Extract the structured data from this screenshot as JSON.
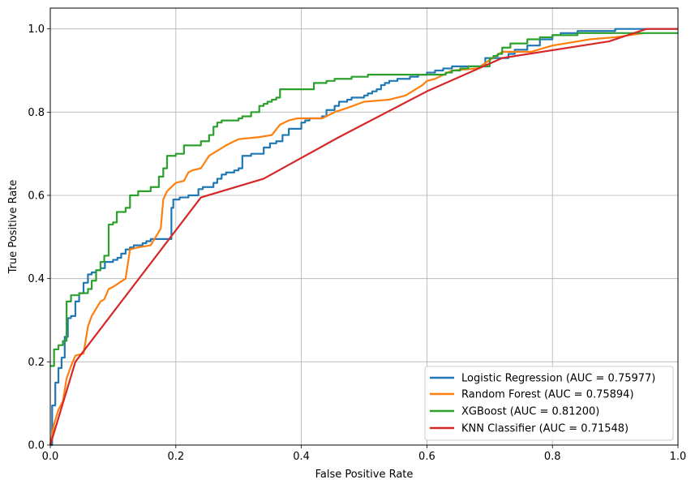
{
  "chart_data": {
    "type": "line",
    "title": "",
    "xlabel": "False Positive Rate",
    "ylabel": "True Positive Rate",
    "xlim": [
      0.0,
      1.0
    ],
    "ylim": [
      0.0,
      1.05
    ],
    "xticks": [
      "0.0",
      "0.2",
      "0.4",
      "0.6",
      "0.8",
      "1.0"
    ],
    "yticks": [
      "0.0",
      "0.2",
      "0.4",
      "0.6",
      "0.8",
      "1.0"
    ],
    "grid": true,
    "legend_position": "bottom-right",
    "series": [
      {
        "name": "Logistic Regression (AUC = 0.75977)",
        "color": "#1f77b4",
        "step": true,
        "x": [
          0,
          0.003,
          0.008,
          0.013,
          0.018,
          0.023,
          0.028,
          0.033,
          0.04,
          0.046,
          0.053,
          0.06,
          0.066,
          0.073,
          0.08,
          0.087,
          0.1,
          0.107,
          0.113,
          0.12,
          0.127,
          0.133,
          0.14,
          0.147,
          0.153,
          0.16,
          0.18,
          0.193,
          0.196,
          0.2,
          0.206,
          0.22,
          0.236,
          0.243,
          0.26,
          0.266,
          0.273,
          0.28,
          0.293,
          0.3,
          0.306,
          0.313,
          0.32,
          0.34,
          0.35,
          0.36,
          0.37,
          0.38,
          0.393,
          0.4,
          0.406,
          0.413,
          0.42,
          0.433,
          0.44,
          0.453,
          0.46,
          0.473,
          0.48,
          0.5,
          0.506,
          0.513,
          0.52,
          0.527,
          0.533,
          0.54,
          0.553,
          0.56,
          0.573,
          0.586,
          0.6,
          0.613,
          0.626,
          0.64,
          0.653,
          0.666,
          0.693,
          0.73,
          0.74,
          0.76,
          0.78,
          0.8,
          0.813,
          0.826,
          0.84,
          0.86,
          0.88,
          0.9,
          0.93,
          0.95,
          1.0
        ],
        "y": [
          0,
          0.095,
          0.15,
          0.185,
          0.21,
          0.26,
          0.305,
          0.31,
          0.345,
          0.365,
          0.39,
          0.41,
          0.415,
          0.42,
          0.425,
          0.44,
          0.445,
          0.45,
          0.46,
          0.47,
          0.475,
          0.48,
          0.48,
          0.485,
          0.49,
          0.495,
          0.495,
          0.57,
          0.59,
          0.59,
          0.595,
          0.6,
          0.615,
          0.62,
          0.63,
          0.64,
          0.65,
          0.655,
          0.66,
          0.665,
          0.695,
          0.695,
          0.7,
          0.715,
          0.725,
          0.73,
          0.745,
          0.76,
          0.76,
          0.775,
          0.78,
          0.785,
          0.785,
          0.79,
          0.805,
          0.815,
          0.825,
          0.83,
          0.835,
          0.84,
          0.845,
          0.85,
          0.855,
          0.865,
          0.87,
          0.875,
          0.88,
          0.88,
          0.885,
          0.89,
          0.895,
          0.9,
          0.905,
          0.91,
          0.91,
          0.91,
          0.93,
          0.94,
          0.95,
          0.96,
          0.975,
          0.985,
          0.99,
          0.99,
          0.995,
          0.995,
          0.995,
          1.0,
          1.0,
          1.0,
          1.0
        ]
      },
      {
        "name": "Random Forest (AUC = 0.75894)",
        "color": "#ff7f0e",
        "step": false,
        "x": [
          0,
          0.006,
          0.013,
          0.02,
          0.026,
          0.033,
          0.04,
          0.053,
          0.06,
          0.066,
          0.08,
          0.086,
          0.093,
          0.1,
          0.12,
          0.127,
          0.14,
          0.16,
          0.176,
          0.18,
          0.186,
          0.193,
          0.2,
          0.213,
          0.22,
          0.226,
          0.24,
          0.253,
          0.28,
          0.293,
          0.3,
          0.333,
          0.353,
          0.366,
          0.38,
          0.393,
          0.433,
          0.453,
          0.473,
          0.5,
          0.54,
          0.566,
          0.593,
          0.6,
          0.613,
          0.64,
          0.68,
          0.72,
          0.766,
          0.8,
          0.86,
          0.9,
          0.946
        ],
        "y": [
          0,
          0.05,
          0.085,
          0.105,
          0.16,
          0.19,
          0.215,
          0.22,
          0.285,
          0.31,
          0.345,
          0.35,
          0.375,
          0.38,
          0.4,
          0.47,
          0.475,
          0.48,
          0.52,
          0.59,
          0.61,
          0.62,
          0.63,
          0.635,
          0.655,
          0.66,
          0.665,
          0.695,
          0.72,
          0.73,
          0.735,
          0.74,
          0.745,
          0.77,
          0.78,
          0.785,
          0.785,
          0.8,
          0.81,
          0.825,
          0.83,
          0.84,
          0.865,
          0.875,
          0.88,
          0.9,
          0.905,
          0.945,
          0.945,
          0.96,
          0.975,
          0.98,
          0.99
        ]
      },
      {
        "name": "XGBoost (AUC = 0.81200)",
        "color": "#2ca02c",
        "step": true,
        "x": [
          0,
          0.006,
          0.013,
          0.02,
          0.026,
          0.033,
          0.046,
          0.06,
          0.066,
          0.073,
          0.08,
          0.086,
          0.093,
          0.1,
          0.106,
          0.12,
          0.127,
          0.14,
          0.16,
          0.173,
          0.18,
          0.186,
          0.193,
          0.2,
          0.213,
          0.24,
          0.253,
          0.26,
          0.266,
          0.273,
          0.28,
          0.3,
          0.306,
          0.32,
          0.333,
          0.34,
          0.346,
          0.353,
          0.36,
          0.366,
          0.4,
          0.42,
          0.44,
          0.453,
          0.466,
          0.48,
          0.506,
          0.58,
          0.63,
          0.64,
          0.653,
          0.666,
          0.7,
          0.706,
          0.713,
          0.72,
          0.733,
          0.76,
          0.78,
          0.8,
          0.84,
          0.88,
          0.94,
          1.0
        ],
        "y": [
          0.19,
          0.23,
          0.24,
          0.25,
          0.345,
          0.36,
          0.365,
          0.375,
          0.395,
          0.42,
          0.44,
          0.455,
          0.53,
          0.535,
          0.56,
          0.57,
          0.6,
          0.61,
          0.62,
          0.645,
          0.665,
          0.695,
          0.695,
          0.7,
          0.72,
          0.73,
          0.745,
          0.765,
          0.775,
          0.78,
          0.78,
          0.785,
          0.79,
          0.8,
          0.815,
          0.82,
          0.825,
          0.83,
          0.835,
          0.855,
          0.855,
          0.87,
          0.875,
          0.88,
          0.88,
          0.885,
          0.89,
          0.89,
          0.895,
          0.9,
          0.905,
          0.91,
          0.93,
          0.935,
          0.94,
          0.955,
          0.965,
          0.975,
          0.98,
          0.985,
          0.99,
          0.99,
          0.99,
          0.99
        ]
      },
      {
        "name": "KNN Classifier (AUC = 0.71548)",
        "color": "#d62728",
        "step": false,
        "x": [
          0,
          0.04,
          0.24,
          0.34,
          0.46,
          0.6,
          0.72,
          0.89,
          0.95,
          1.0
        ],
        "y": [
          0,
          0.2,
          0.595,
          0.64,
          0.74,
          0.85,
          0.93,
          0.97,
          1.0,
          1.0
        ]
      }
    ]
  }
}
